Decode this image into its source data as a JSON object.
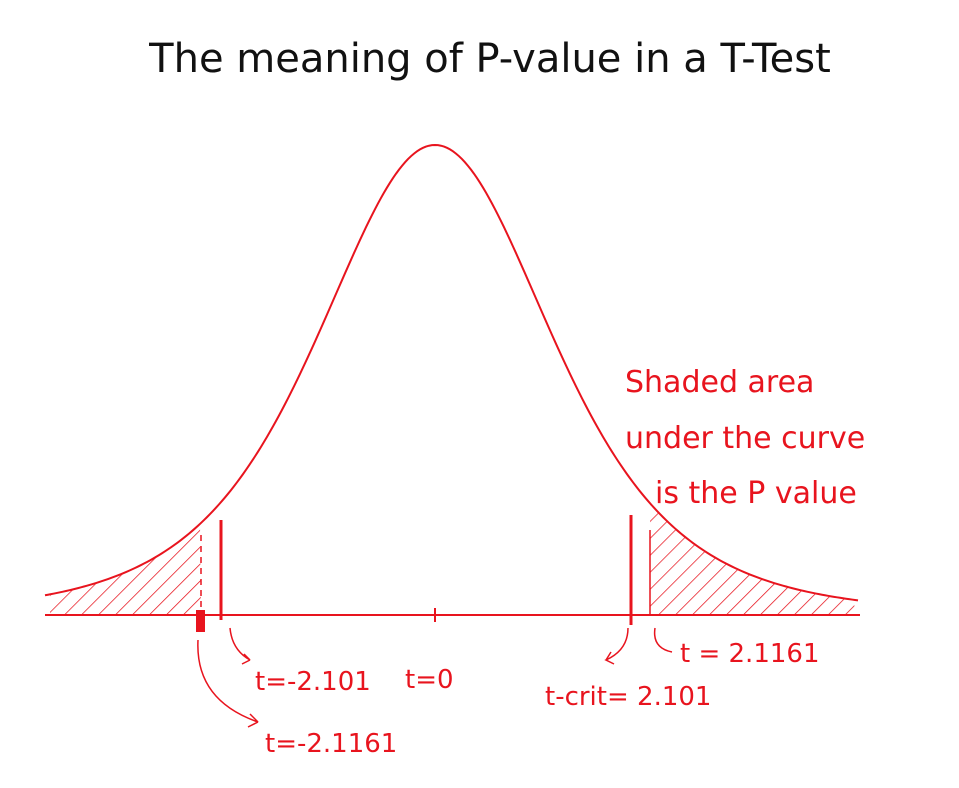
{
  "title": "The meaning of P-value in a T-Test",
  "annotation": {
    "lines": [
      "Shaded area",
      "under the curve",
      "is the P value"
    ]
  },
  "labels": [
    "t=-2.101",
    "t=0",
    "t-crit= 2.101",
    "t = 2.1161",
    "t=-2.1161"
  ]
}
